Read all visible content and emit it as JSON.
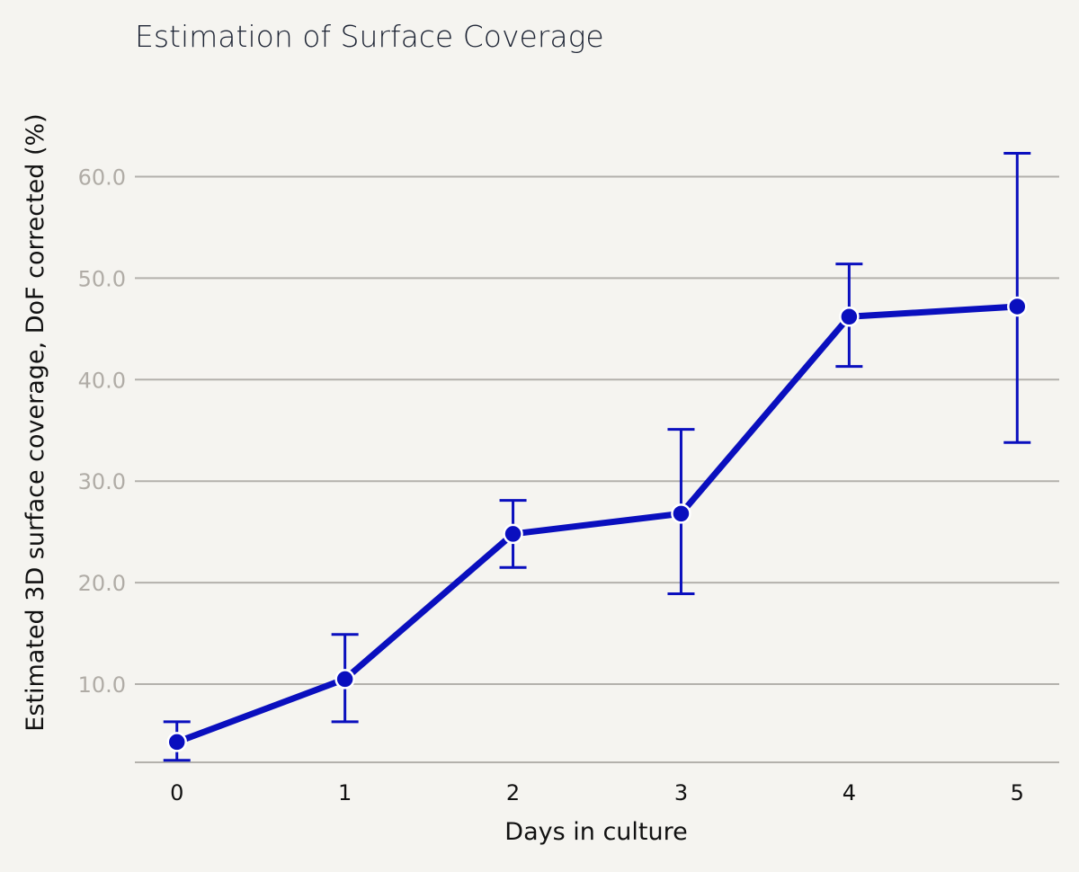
{
  "chart_data": {
    "type": "line",
    "title": "Estimation of Surface Coverage",
    "xlabel": "Days in culture",
    "ylabel": "Estimated 3D surface coverage, DoF corrected (%)",
    "x": [
      0,
      1,
      2,
      3,
      4,
      5
    ],
    "x_tick_labels": [
      "0",
      "1",
      "2",
      "3",
      "4",
      "5"
    ],
    "y_tick_values": [
      10,
      20,
      30,
      40,
      50,
      60
    ],
    "y_tick_labels": [
      "10.0",
      "20.0",
      "30.0",
      "40.0",
      "50.0",
      "60.0"
    ],
    "ylim": [
      2.3,
      65
    ],
    "xlim": [
      -0.25,
      5.25
    ],
    "grid": "horizontal",
    "series": [
      {
        "values": [
          4.3,
          10.5,
          24.8,
          26.8,
          46.2,
          47.2
        ],
        "error_low": [
          2.5,
          6.3,
          21.5,
          18.9,
          41.3,
          33.8
        ],
        "error_high": [
          6.3,
          14.9,
          28.1,
          35.1,
          51.4,
          62.3
        ],
        "color": "#0a0fbe"
      }
    ],
    "colors": {
      "background": "#f5f4f0",
      "grid": "#b3b1ac",
      "series": "#0a0fbe"
    }
  }
}
